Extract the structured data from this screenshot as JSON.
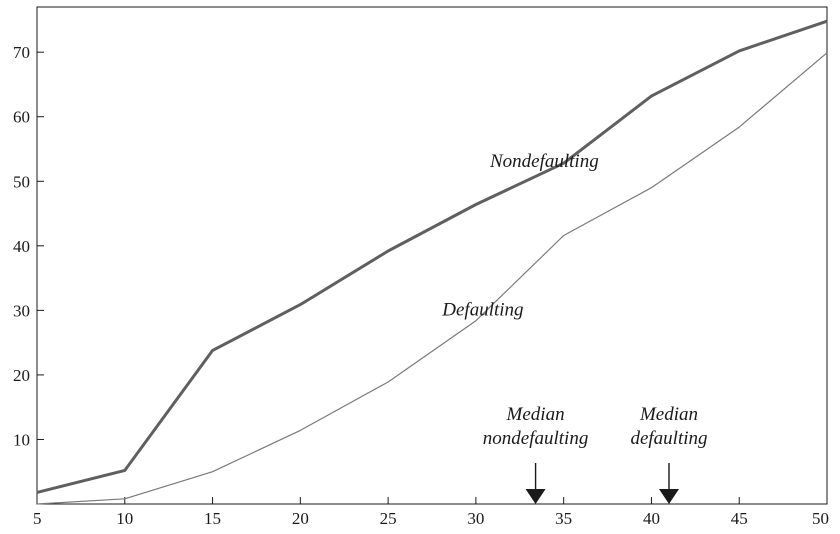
{
  "chart_data": {
    "type": "line",
    "title": "",
    "xlabel": "",
    "ylabel": "",
    "xlim": [
      5,
      50
    ],
    "ylim": [
      0,
      77
    ],
    "x": [
      5,
      10,
      15,
      20,
      25,
      30,
      35,
      40,
      45,
      50
    ],
    "x_ticks": [
      5,
      10,
      15,
      20,
      25,
      30,
      35,
      40,
      45,
      50
    ],
    "y_ticks": [
      10,
      20,
      30,
      40,
      50,
      60,
      70
    ],
    "grid": false,
    "series": [
      {
        "name": "Nondefaulting",
        "values": [
          1.8,
          5.2,
          23.8,
          30.9,
          39.2,
          46.4,
          52.8,
          63.2,
          70.2,
          74.8
        ],
        "color": "#5f5f5f",
        "style": "thick"
      },
      {
        "name": "Defaulting",
        "values": [
          0,
          0.8,
          5.0,
          11.4,
          18.9,
          28.4,
          41.6,
          49.0,
          58.4,
          69.9
        ],
        "color": "#7a7a7a",
        "style": "thin"
      }
    ],
    "annotations": [
      {
        "id": "nondefaulting-label",
        "lines": [
          "Nondefaulting"
        ],
        "x": 33.9,
        "y": 52.2
      },
      {
        "id": "defaulting-label",
        "lines": [
          "Defaulting"
        ],
        "x": 30.4,
        "y": 29.2
      },
      {
        "id": "median-nondefaulting",
        "lines": [
          "Median",
          "nondefaulting"
        ],
        "x": 33.4,
        "y": 4.5,
        "arrow_x": 33.4
      },
      {
        "id": "median-defaulting",
        "lines": [
          "Median",
          "defaulting"
        ],
        "x": 41.0,
        "y": 4.5,
        "arrow_x": 41.0
      }
    ]
  }
}
